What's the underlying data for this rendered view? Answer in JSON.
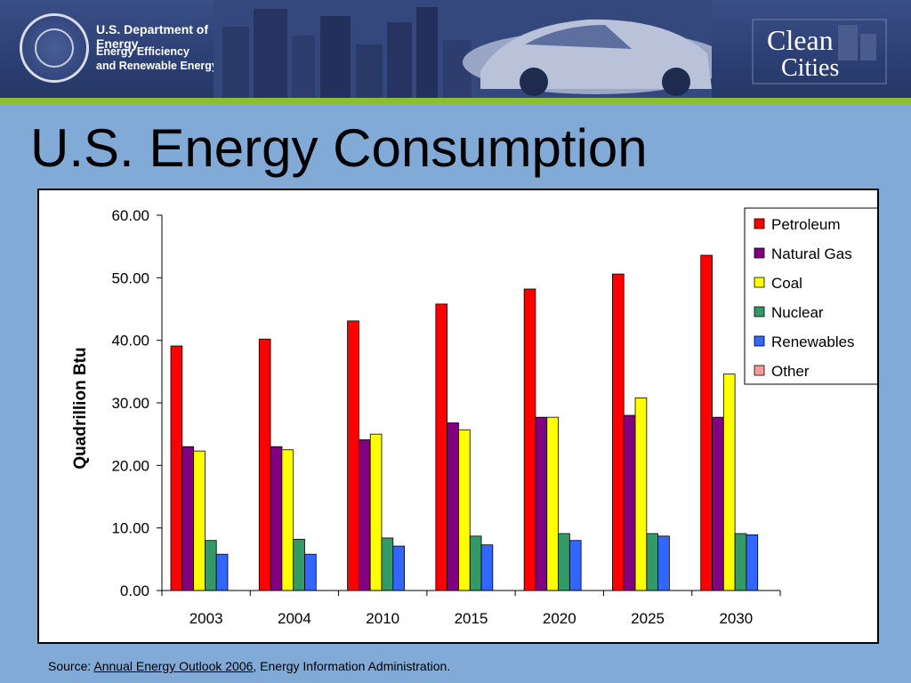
{
  "header": {
    "agency_name": "U.S. Department of Energy",
    "office_line1": "Energy Efficiency",
    "office_line2": "and Renewable Energy",
    "logo_clean": "Clean",
    "logo_cities": "Cities"
  },
  "page": {
    "title": "U.S. Energy Consumption"
  },
  "source": {
    "prefix": "Source: ",
    "link_text": " Annual Energy Outlook 2006",
    "suffix": ", Energy Information Administration."
  },
  "chart_data": {
    "type": "bar",
    "title": "",
    "xlabel": "",
    "ylabel": "Quadrillion Btu",
    "ylim": [
      0,
      60
    ],
    "yticks": [
      "0.00",
      "10.00",
      "20.00",
      "30.00",
      "40.00",
      "50.00",
      "60.00"
    ],
    "categories": [
      "2003",
      "2004",
      "2010",
      "2015",
      "2020",
      "2025",
      "2030"
    ],
    "legend_position": "top-right",
    "grid": false,
    "series": [
      {
        "name": "Petroleum",
        "color": "#ff0000",
        "values": [
          39.1,
          40.2,
          43.1,
          45.8,
          48.2,
          50.6,
          53.6
        ]
      },
      {
        "name": "Natural Gas",
        "color": "#800080",
        "values": [
          23.0,
          23.0,
          24.1,
          26.8,
          27.7,
          28.0,
          27.7
        ]
      },
      {
        "name": "Coal",
        "color": "#ffff00",
        "values": [
          22.3,
          22.5,
          25.0,
          25.7,
          27.7,
          30.8,
          34.6
        ]
      },
      {
        "name": "Nuclear",
        "color": "#339966",
        "values": [
          8.0,
          8.2,
          8.4,
          8.7,
          9.1,
          9.1,
          9.1
        ]
      },
      {
        "name": "Renewables",
        "color": "#3366ff",
        "values": [
          5.8,
          5.8,
          7.1,
          7.3,
          8.0,
          8.7,
          8.9
        ]
      },
      {
        "name": "Other",
        "color": "#ff9999",
        "values": [
          0.0,
          0.0,
          0.0,
          0.0,
          0.0,
          0.0,
          0.0
        ]
      }
    ]
  }
}
